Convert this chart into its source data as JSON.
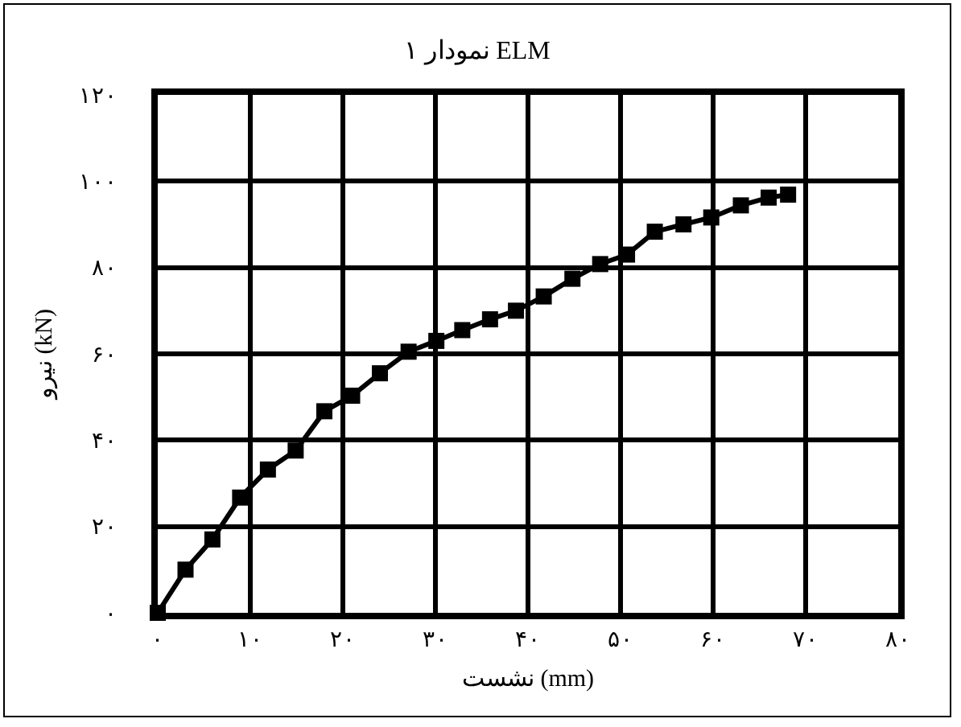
{
  "chart_data": {
    "type": "line",
    "title": "نمودار ۱ ELM",
    "xlabel": "نشست (mm)",
    "ylabel": "نیرو (kN)",
    "x": [
      0,
      3,
      5.9,
      8.9,
      11.9,
      14.9,
      18,
      21,
      24,
      27.1,
      30.1,
      32.9,
      35.9,
      38.7,
      41.7,
      44.8,
      47.8,
      50.7,
      53.7,
      56.8,
      59.8,
      63,
      66,
      68.1
    ],
    "series": [
      {
        "color": "#000000",
        "values": [
          0,
          10,
          17,
          26.7,
          33.2,
          37.6,
          46.7,
          50.3,
          55.5,
          60.5,
          63,
          65.5,
          68,
          70,
          73.3,
          77.4,
          80.8,
          83,
          88.3,
          90,
          91.6,
          94.4,
          96.2,
          96.9
        ]
      }
    ],
    "xlim": [
      0,
      80
    ],
    "ylim": [
      0,
      120
    ],
    "xticks": [
      {
        "value": 0,
        "label": "۰"
      },
      {
        "value": 10,
        "label": "۱۰"
      },
      {
        "value": 20,
        "label": "۲۰"
      },
      {
        "value": 30,
        "label": "۳۰"
      },
      {
        "value": 40,
        "label": "۴۰"
      },
      {
        "value": 50,
        "label": "۵۰"
      },
      {
        "value": 60,
        "label": "۶۰"
      },
      {
        "value": 70,
        "label": "۷۰"
      },
      {
        "value": 80,
        "label": "۸۰"
      }
    ],
    "yticks": [
      {
        "value": 0,
        "label": "۰"
      },
      {
        "value": 20,
        "label": "۲۰"
      },
      {
        "value": 40,
        "label": "۴۰"
      },
      {
        "value": 60,
        "label": "۶۰"
      },
      {
        "value": 80,
        "label": "۸۰"
      },
      {
        "value": 100,
        "label": "۱۰۰"
      },
      {
        "value": 120,
        "label": "۱۲۰"
      }
    ],
    "grid": true,
    "marker": "square",
    "line_style": "solid"
  }
}
